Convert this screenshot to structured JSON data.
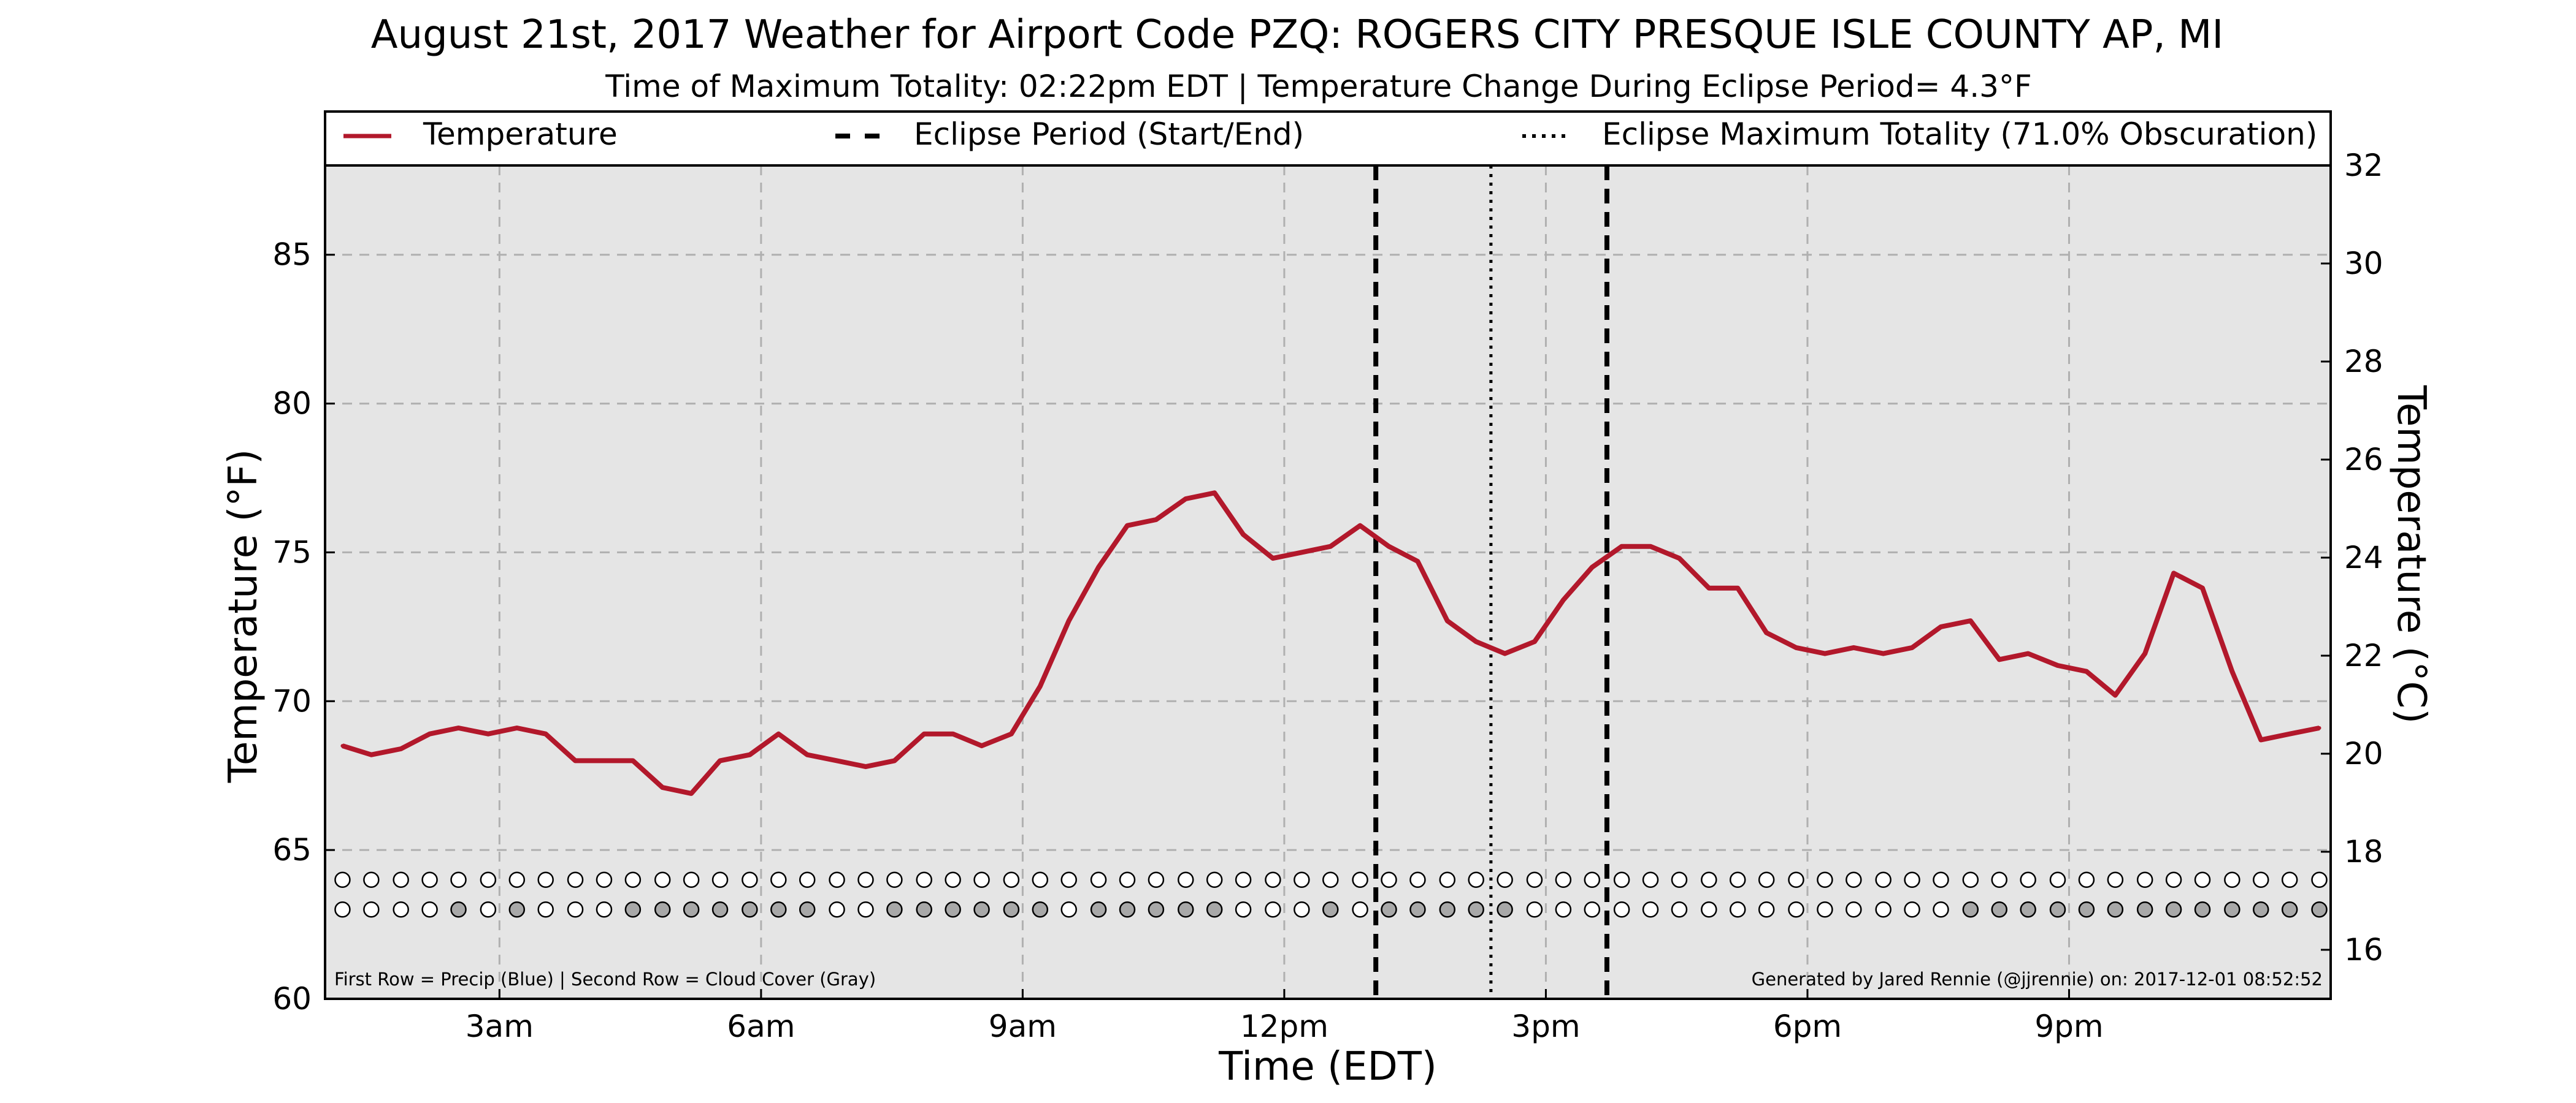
{
  "chart_data": {
    "type": "line",
    "title": "August 21st, 2017 Weather for Airport Code PZQ: ROGERS CITY PRESQUE ISLE COUNTY AP, MI",
    "subtitle": "Time of Maximum Totality: 02:22pm EDT | Temperature Change During Eclipse Period= 4.3°F",
    "xlabel": "Time (EDT)",
    "ylabel": "Temperature (°F)",
    "ylabel_right": "Temperature (°C)",
    "xlim": [
      1.0,
      24.0
    ],
    "ylim": [
      60,
      88
    ],
    "ylim_right": [
      15,
      32
    ],
    "x_ticks": [
      {
        "x": 3,
        "label": "3am"
      },
      {
        "x": 6,
        "label": "6am"
      },
      {
        "x": 9,
        "label": "9am"
      },
      {
        "x": 12,
        "label": "12pm"
      },
      {
        "x": 15,
        "label": "3pm"
      },
      {
        "x": 18,
        "label": "6pm"
      },
      {
        "x": 21,
        "label": "9pm"
      }
    ],
    "y_ticks": [
      60,
      65,
      70,
      75,
      80,
      85
    ],
    "y_ticks_right": [
      16,
      18,
      20,
      22,
      24,
      26,
      28,
      30,
      32
    ],
    "grid": true,
    "legend_placement": "top",
    "legend": {
      "temperature": "Temperature",
      "eclipse_period": "Eclipse Period (Start/End)",
      "eclipse_max": "Eclipse Maximum Totality (71.0% Obscuration)"
    },
    "series": [
      {
        "name": "Temperature",
        "color": "#b2182b",
        "x": [
          1.2,
          1.53,
          1.87,
          2.2,
          2.53,
          2.87,
          3.2,
          3.53,
          3.87,
          4.2,
          4.53,
          4.87,
          5.2,
          5.53,
          5.87,
          6.2,
          6.53,
          6.87,
          7.2,
          7.53,
          7.87,
          8.2,
          8.53,
          8.87,
          9.2,
          9.53,
          9.87,
          10.2,
          10.53,
          10.87,
          11.2,
          11.53,
          11.87,
          12.2,
          12.53,
          12.87,
          13.2,
          13.53,
          13.87,
          14.2,
          14.53,
          14.87,
          15.2,
          15.53,
          15.87,
          16.2,
          16.53,
          16.87,
          17.2,
          17.53,
          17.87,
          18.2,
          18.53,
          18.87,
          19.2,
          19.53,
          19.87,
          20.2,
          20.53,
          20.87,
          21.2,
          21.53,
          21.87,
          22.2,
          22.53,
          22.87,
          23.2,
          23.53,
          23.87
        ],
        "values": [
          68.5,
          68.2,
          68.4,
          68.9,
          69.1,
          68.9,
          69.1,
          68.9,
          68.0,
          68.0,
          68.0,
          67.1,
          66.9,
          68.0,
          68.2,
          68.9,
          68.2,
          68.0,
          67.8,
          68.0,
          68.9,
          68.9,
          68.5,
          68.9,
          70.5,
          72.7,
          74.5,
          75.9,
          76.1,
          76.8,
          77.0,
          75.6,
          74.8,
          75.0,
          75.2,
          75.9,
          75.2,
          74.7,
          72.7,
          72.0,
          71.6,
          72.0,
          73.4,
          74.5,
          75.2,
          75.2,
          74.8,
          73.8,
          73.8,
          72.3,
          71.8,
          71.6,
          71.8,
          71.6,
          71.8,
          72.5,
          72.7,
          71.4,
          71.6,
          71.2,
          71.0,
          70.2,
          71.6,
          74.3,
          73.8,
          71.0,
          68.7,
          68.9,
          69.1
        ]
      }
    ],
    "eclipse_start": 13.05,
    "eclipse_end": 15.7,
    "eclipse_max": 14.37,
    "precip_cloud_rows": {
      "x": [
        1.2,
        1.53,
        1.87,
        2.2,
        2.53,
        2.87,
        3.2,
        3.53,
        3.87,
        4.2,
        4.53,
        4.87,
        5.2,
        5.53,
        5.87,
        6.2,
        6.53,
        6.87,
        7.2,
        7.53,
        7.87,
        8.2,
        8.53,
        8.87,
        9.2,
        9.53,
        9.87,
        10.2,
        10.53,
        10.87,
        11.2,
        11.53,
        11.87,
        12.2,
        12.53,
        12.87,
        13.2,
        13.53,
        13.87,
        14.2,
        14.53,
        14.87,
        15.2,
        15.53,
        15.87,
        16.2,
        16.53,
        16.87,
        17.2,
        17.53,
        17.87,
        18.2,
        18.53,
        18.87,
        19.2,
        19.53,
        19.87,
        20.2,
        20.53,
        20.87,
        21.2,
        21.53,
        21.87,
        22.2,
        22.53,
        22.87,
        23.2,
        23.53,
        23.87
      ],
      "precip_y": 64,
      "cloud_y": 63,
      "cloud_filled": [
        0,
        0,
        0,
        0,
        1,
        0,
        1,
        0,
        0,
        0,
        1,
        1,
        1,
        1,
        1,
        1,
        1,
        0,
        0,
        1,
        1,
        1,
        1,
        1,
        1,
        0,
        1,
        1,
        1,
        1,
        1,
        0,
        0,
        0,
        1,
        0,
        1,
        1,
        1,
        1,
        1,
        0,
        0,
        0,
        0,
        0,
        0,
        0,
        0,
        0,
        0,
        0,
        0,
        0,
        0,
        0,
        1,
        1,
        1,
        1,
        1,
        1,
        1,
        1,
        1,
        1,
        1,
        1,
        1
      ],
      "precip_color": "#ffffff",
      "cloud_color": "#a8a8a8"
    },
    "footnote_left": "First Row = Precip (Blue) | Second Row = Cloud Cover (Gray)",
    "footnote_right": "Generated by Jared Rennie (@jjrennie) on: 2017-12-01 08:52:52",
    "colors": {
      "plot_background": "#e5e5e5",
      "temperature": "#b2182b",
      "grid": "#b0b0b0"
    }
  }
}
